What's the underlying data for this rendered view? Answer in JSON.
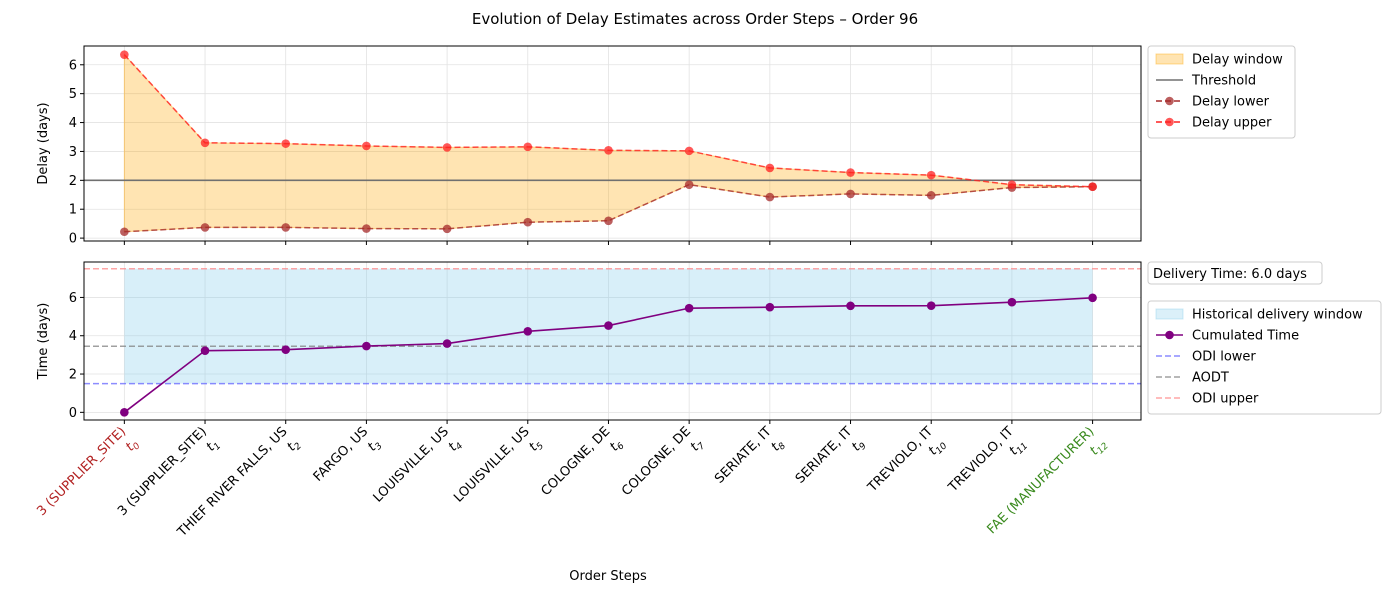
{
  "title": "Evolution of Delay Estimates across Order Steps – Order 96",
  "xlabel": "Order Steps",
  "chart_data": [
    {
      "type": "area",
      "ylabel": "Delay (days)",
      "ylim": [
        -0.1,
        6.65
      ],
      "yticks": [
        0,
        1,
        2,
        3,
        4,
        5,
        6
      ],
      "grid": true,
      "legend_position": "outside-right",
      "x": [
        0,
        1,
        2,
        3,
        4,
        5,
        6,
        7,
        8,
        9,
        10,
        11,
        12
      ],
      "threshold": 2.0,
      "series": [
        {
          "name": "Delay window",
          "kind": "band",
          "color": "#ffa500"
        },
        {
          "name": "Threshold",
          "kind": "hline",
          "color": "#707070"
        },
        {
          "name": "Delay lower",
          "kind": "line",
          "color": "#a52a2a",
          "values": [
            0.22,
            0.37,
            0.37,
            0.33,
            0.32,
            0.55,
            0.6,
            1.85,
            1.42,
            1.53,
            1.48,
            1.75,
            1.78
          ]
        },
        {
          "name": "Delay upper",
          "kind": "line",
          "color": "#ff2020",
          "values": [
            6.35,
            3.3,
            3.27,
            3.19,
            3.14,
            3.16,
            3.04,
            3.02,
            2.43,
            2.27,
            2.18,
            1.85,
            1.78
          ]
        }
      ]
    },
    {
      "type": "line",
      "ylabel": "Time (days)",
      "ylim": [
        -0.4,
        7.85
      ],
      "yticks": [
        0,
        2,
        4,
        6
      ],
      "grid": true,
      "legend_position": "outside-right",
      "annotation": "Delivery Time: 6.0 days",
      "x": [
        0,
        1,
        2,
        3,
        4,
        5,
        6,
        7,
        8,
        9,
        10,
        11,
        12
      ],
      "window": [
        1.5,
        7.5
      ],
      "series": [
        {
          "name": "Historical delivery window",
          "kind": "band",
          "color": "#87ceeb"
        },
        {
          "name": "Cumulated Time",
          "kind": "line",
          "color": "#800080",
          "values": [
            0.0,
            3.22,
            3.27,
            3.46,
            3.59,
            4.23,
            4.53,
            5.44,
            5.49,
            5.56,
            5.57,
            5.75,
            5.98
          ]
        },
        {
          "name": "ODI lower",
          "kind": "hline",
          "color": "#6666ff",
          "value": 1.5
        },
        {
          "name": "AODT",
          "kind": "hline",
          "color": "#808080",
          "value": 3.45
        },
        {
          "name": "ODI upper",
          "kind": "hline",
          "color": "#ff8888",
          "value": 7.5
        }
      ]
    }
  ],
  "steps": [
    {
      "label": "3 (SUPPLIER_SITE)",
      "t": "t",
      "sub": "0",
      "color": "#b22222"
    },
    {
      "label": "3 (SUPPLIER_SITE)",
      "t": "t",
      "sub": "1",
      "color": "#000000"
    },
    {
      "label": "THIEF RIVER FALLS, US",
      "t": "t",
      "sub": "2",
      "color": "#000000"
    },
    {
      "label": "FARGO, US",
      "t": "t",
      "sub": "3",
      "color": "#000000"
    },
    {
      "label": "LOUISVILLE, US",
      "t": "t",
      "sub": "4",
      "color": "#000000"
    },
    {
      "label": "LOUISVILLE, US",
      "t": "t",
      "sub": "5",
      "color": "#000000"
    },
    {
      "label": "COLOGNE, DE",
      "t": "t",
      "sub": "6",
      "color": "#000000"
    },
    {
      "label": "COLOGNE, DE",
      "t": "t",
      "sub": "7",
      "color": "#000000"
    },
    {
      "label": "SERIATE, IT",
      "t": "t",
      "sub": "8",
      "color": "#000000"
    },
    {
      "label": "SERIATE, IT",
      "t": "t",
      "sub": "9",
      "color": "#000000"
    },
    {
      "label": "TREVIOLO, IT",
      "t": "t",
      "sub": "10",
      "color": "#000000"
    },
    {
      "label": "TREVIOLO, IT",
      "t": "t",
      "sub": "11",
      "color": "#000000"
    },
    {
      "label": "FAE (MANUFACTURER)",
      "t": "t",
      "sub": "12",
      "color": "#3a8a1e"
    }
  ]
}
